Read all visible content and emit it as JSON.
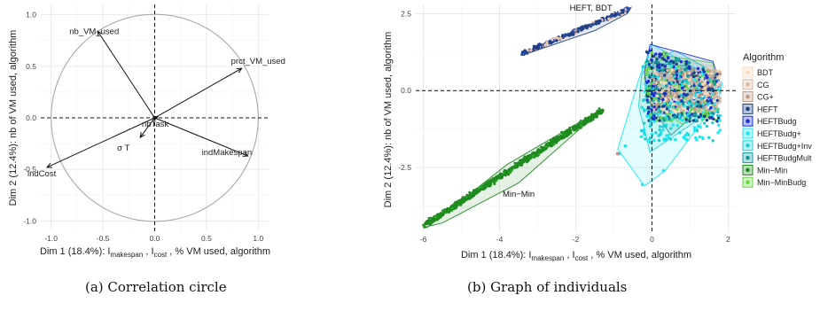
{
  "captions": {
    "a": "(a) Correlation circle",
    "b": "(b) Graph of individuals"
  },
  "chart_data": [
    {
      "type": "scatter",
      "subtype": "correlation-circle",
      "xlabel_main": "Dim 1 (18.4%): I",
      "xlabel_sub1": "makespan",
      "xlabel_mid": " , I",
      "xlabel_sub2": "cost",
      "xlabel_end": " , % VM used, algorithm",
      "ylabel": "Dim 2 (12.4%): nb of VM used, algorithm",
      "xlim": [
        -1.1,
        1.1
      ],
      "ylim": [
        -1.1,
        1.1
      ],
      "ticks": [
        -1.0,
        -0.5,
        0.0,
        0.5,
        1.0
      ],
      "xtick_labels": [
        "-1.0",
        "-0.5",
        "0.0",
        "0.5",
        "1.0"
      ],
      "ytick_labels": [
        "-1.0",
        "-0.5",
        "0.0",
        "0.5",
        "1.0"
      ],
      "grid": true,
      "vectors": [
        {
          "label": "nb_VM_used",
          "x": -0.55,
          "y": 0.84
        },
        {
          "label": "prct_VM_used",
          "x": 0.84,
          "y": 0.48
        },
        {
          "label": "indMakespan",
          "x": 0.9,
          "y": -0.37
        },
        {
          "label": "indCost",
          "x": -1.04,
          "y": -0.48
        },
        {
          "label": "σ T",
          "x": -0.14,
          "y": -0.19
        },
        {
          "label": "nbTask",
          "x": 0.03,
          "y": 0.01
        }
      ]
    },
    {
      "type": "scatter",
      "subtype": "individuals",
      "xlabel_main": "Dim 1 (18.4%): I",
      "xlabel_sub1": "makespan",
      "xlabel_mid": " , I",
      "xlabel_sub2": "cost",
      "xlabel_end": " , % VM used, algorithm",
      "ylabel": "Dim 2 (12.4%): nb of VM used, algorithm",
      "xlim": [
        -6.2,
        2.2
      ],
      "ylim": [
        -4.6,
        2.8
      ],
      "xticks": [
        -6,
        -4,
        -2,
        0,
        2
      ],
      "xtick_labels": [
        "-6",
        "-4",
        "-2",
        "0",
        "2"
      ],
      "yticks": [
        -2.5,
        0,
        2.5
      ],
      "ytick_labels": [
        "-2.5",
        "0.0",
        "2.5"
      ],
      "grid": true,
      "annotations": [
        {
          "label": "HEFT, BDT",
          "x": -1.6,
          "y": 2.6
        },
        {
          "label": "Min−Min",
          "x": -3.5,
          "y": -3.45
        }
      ],
      "legend": {
        "title": "Algorithm",
        "position": "right",
        "entries": [
          {
            "name": "BDT",
            "color": "#f6d8c0"
          },
          {
            "name": "CG",
            "color": "#d9b9a3"
          },
          {
            "name": "CG+",
            "color": "#b89a86"
          },
          {
            "name": "HEFT",
            "color": "#1f3f86"
          },
          {
            "name": "HEFTBudg",
            "color": "#1b2fd6"
          },
          {
            "name": "HEFTBudg+",
            "color": "#19e8f2"
          },
          {
            "name": "HEFTBudg+Inv",
            "color": "#20cfd6"
          },
          {
            "name": "HEFTBudgMult",
            "color": "#129a9a"
          },
          {
            "name": "Min−Min",
            "color": "#1f8a1f"
          },
          {
            "name": "Min−MinBudg",
            "color": "#6ad44a"
          }
        ]
      }
    }
  ]
}
